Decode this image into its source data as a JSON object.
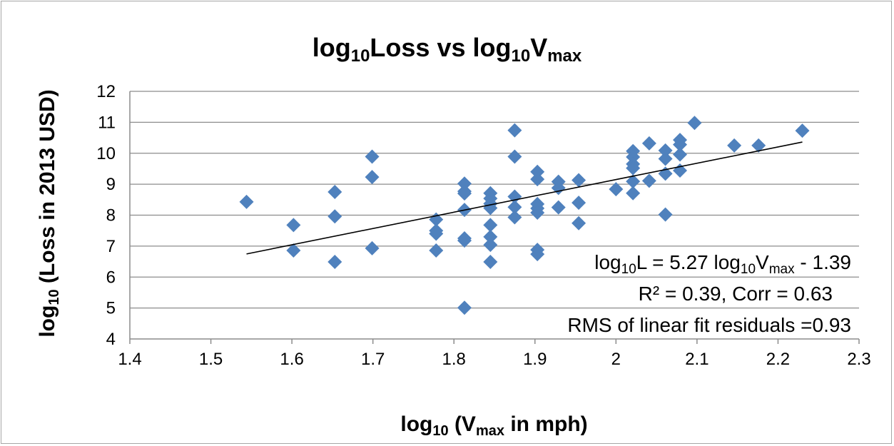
{
  "chart_data": {
    "type": "scatter",
    "title": {
      "prefix": "log",
      "sub1": "10",
      "mid": "Loss vs log",
      "sub2": "10",
      "mid2": "V",
      "sub3": "max"
    },
    "xlabel": {
      "prefix": "log",
      "sub1": "10",
      "mid": " (V",
      "sub2": "max",
      "suffix": " in mph)"
    },
    "ylabel": {
      "prefix": "log",
      "sub1": "10",
      "suffix": " (Loss in 2013 USD)"
    },
    "xlim": [
      1.4,
      2.3
    ],
    "ylim": [
      4,
      12
    ],
    "xticks": [
      "1.4",
      "1.5",
      "1.6",
      "1.7",
      "1.8",
      "1.9",
      "2",
      "2.1",
      "2.2",
      "2.3"
    ],
    "yticks": [
      "4",
      "5",
      "6",
      "7",
      "8",
      "9",
      "10",
      "11",
      "12"
    ],
    "grid": "horizontal",
    "marker_color": "#4f81bd",
    "trendline": {
      "slope": 5.27,
      "intercept": -1.39,
      "x_range": [
        1.544,
        2.23
      ],
      "color": "#000000"
    },
    "annotations": {
      "line1": {
        "a": "log",
        "b": "10",
        "c": "L = 5.27 log",
        "d": "10",
        "e": "V",
        "f": "max",
        "g": " - 1.39"
      },
      "line2": "R² = 0.39, Corr = 0.63",
      "line3": "RMS of linear fit residuals =0.93"
    },
    "points": [
      [
        1.544,
        8.43
      ],
      [
        1.602,
        7.68
      ],
      [
        1.602,
        6.86
      ],
      [
        1.653,
        8.75
      ],
      [
        1.653,
        7.96
      ],
      [
        1.653,
        6.49
      ],
      [
        1.699,
        9.89
      ],
      [
        1.699,
        9.23
      ],
      [
        1.699,
        6.93
      ],
      [
        1.778,
        7.86
      ],
      [
        1.778,
        7.5
      ],
      [
        1.778,
        7.4
      ],
      [
        1.778,
        6.86
      ],
      [
        1.813,
        9.02
      ],
      [
        1.813,
        8.77
      ],
      [
        1.813,
        8.7
      ],
      [
        1.813,
        8.17
      ],
      [
        1.813,
        7.25
      ],
      [
        1.813,
        7.18
      ],
      [
        1.813,
        5.01
      ],
      [
        1.845,
        8.71
      ],
      [
        1.845,
        8.54
      ],
      [
        1.845,
        8.37
      ],
      [
        1.845,
        8.23
      ],
      [
        1.845,
        7.68
      ],
      [
        1.845,
        7.3
      ],
      [
        1.845,
        7.04
      ],
      [
        1.845,
        6.49
      ],
      [
        1.875,
        10.74
      ],
      [
        1.875,
        9.89
      ],
      [
        1.875,
        8.6
      ],
      [
        1.875,
        8.26
      ],
      [
        1.875,
        7.93
      ],
      [
        1.903,
        9.4
      ],
      [
        1.903,
        9.16
      ],
      [
        1.903,
        8.36
      ],
      [
        1.903,
        8.22
      ],
      [
        1.903,
        8.08
      ],
      [
        1.903,
        6.88
      ],
      [
        1.903,
        6.74
      ],
      [
        1.929,
        9.08
      ],
      [
        1.929,
        8.88
      ],
      [
        1.929,
        8.25
      ],
      [
        1.954,
        9.13
      ],
      [
        1.954,
        8.4
      ],
      [
        1.954,
        7.74
      ],
      [
        2.0,
        8.84
      ],
      [
        2.021,
        10.07
      ],
      [
        2.021,
        9.88
      ],
      [
        2.021,
        9.65
      ],
      [
        2.021,
        9.52
      ],
      [
        2.021,
        9.09
      ],
      [
        2.021,
        8.71
      ],
      [
        2.041,
        10.32
      ],
      [
        2.041,
        9.11
      ],
      [
        2.061,
        10.09
      ],
      [
        2.061,
        9.82
      ],
      [
        2.061,
        9.34
      ],
      [
        2.061,
        8.02
      ],
      [
        2.079,
        10.43
      ],
      [
        2.079,
        10.28
      ],
      [
        2.079,
        9.96
      ],
      [
        2.079,
        9.44
      ],
      [
        2.097,
        10.98
      ],
      [
        2.146,
        10.25
      ],
      [
        2.176,
        10.25
      ],
      [
        2.23,
        10.73
      ]
    ]
  }
}
